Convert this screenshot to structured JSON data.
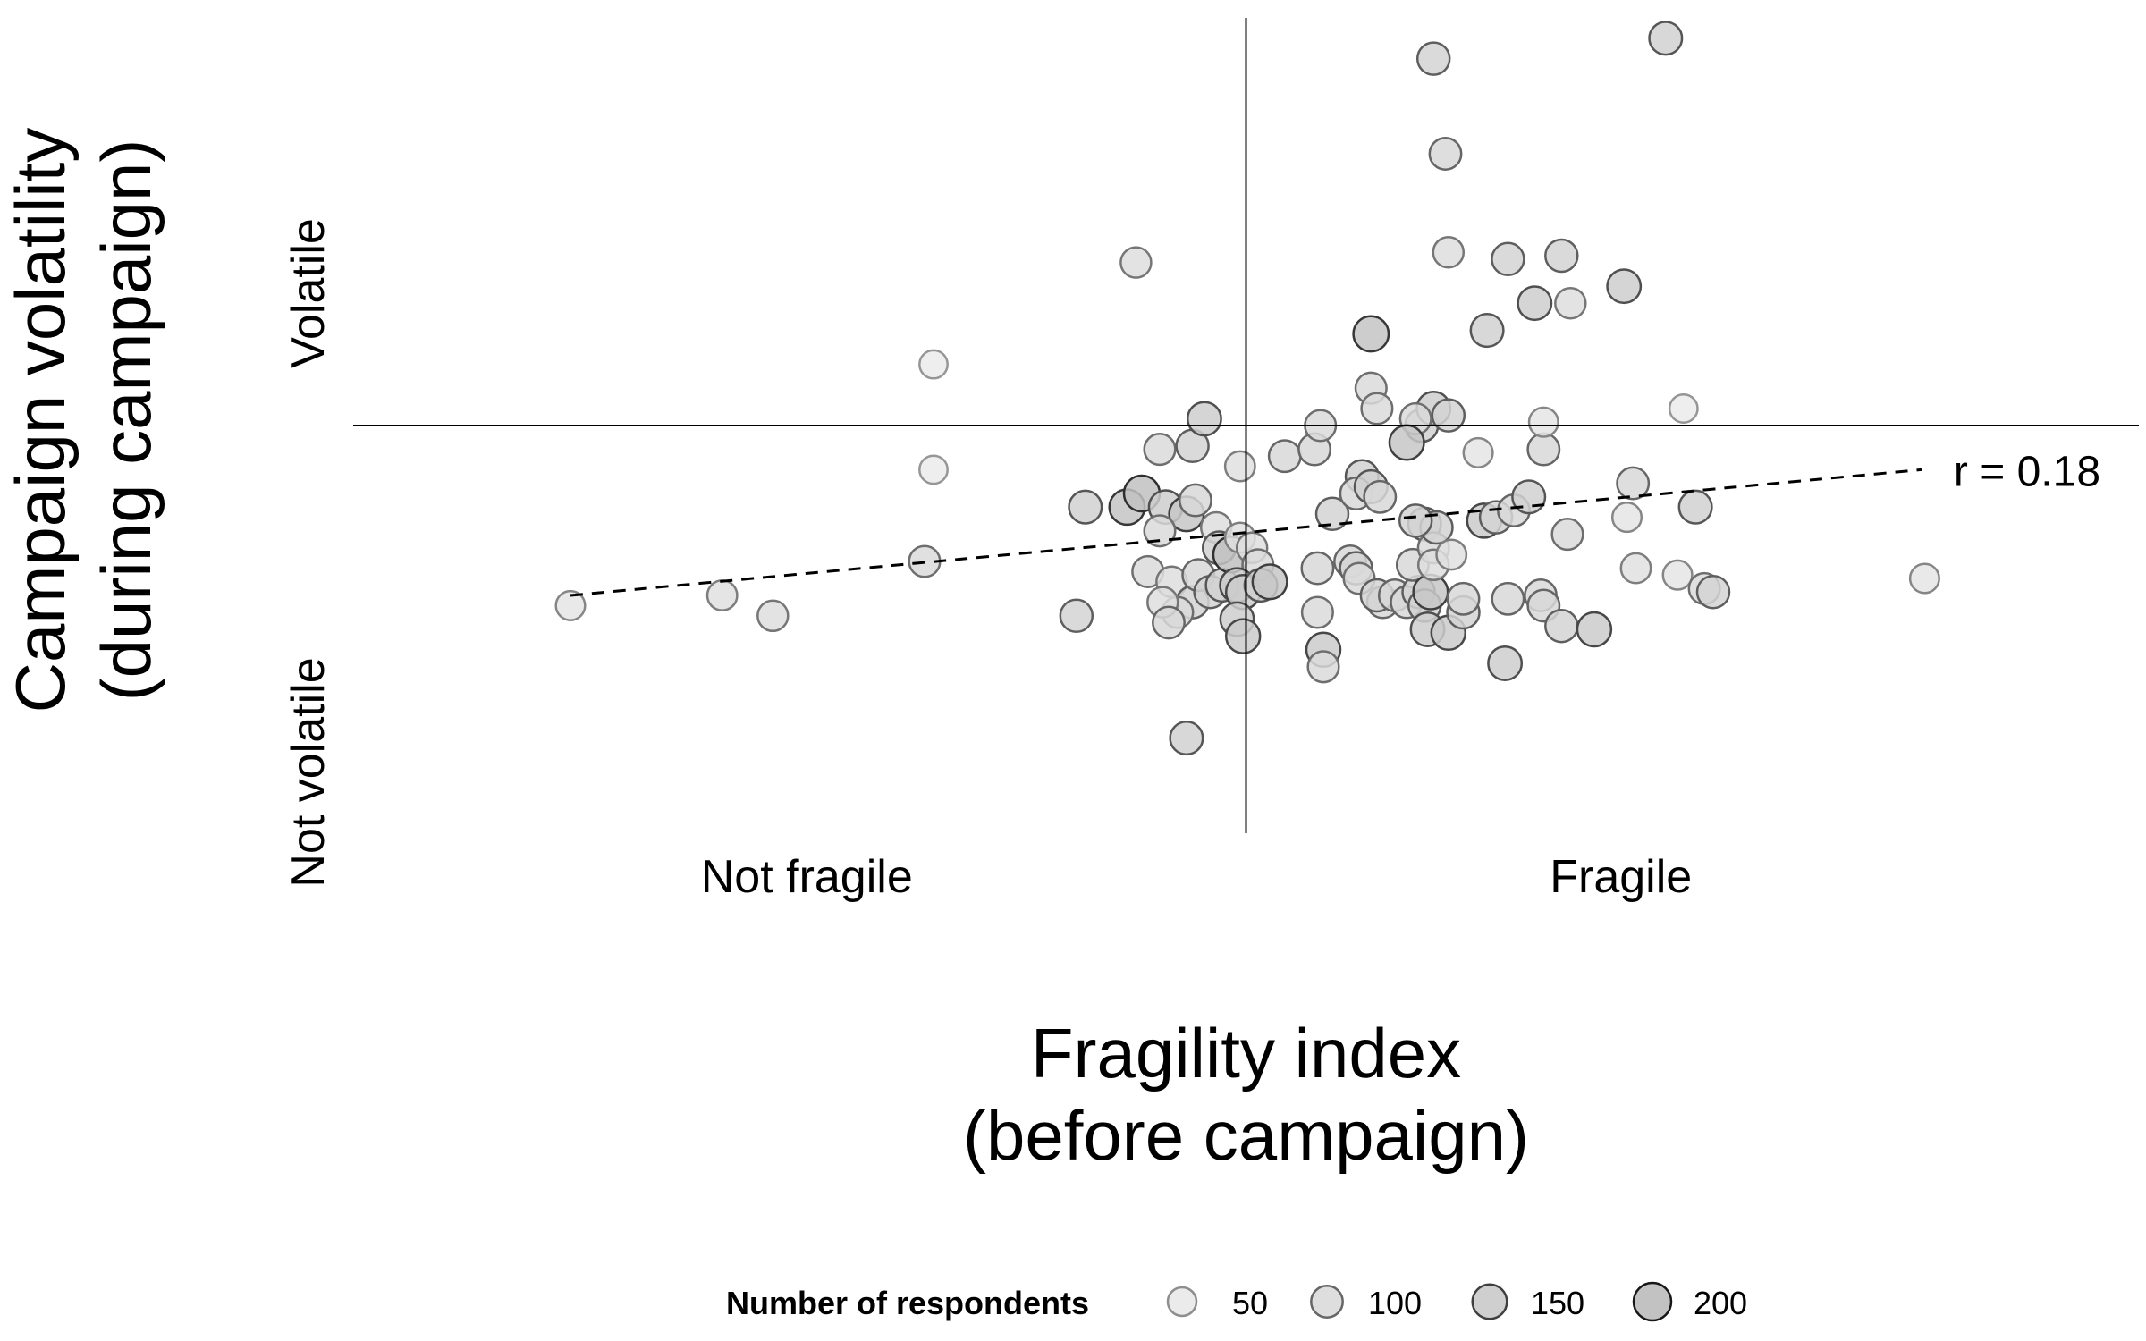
{
  "chart_data": {
    "type": "scatter",
    "xlabel_lines": [
      "Fragility index",
      "(before campaign)"
    ],
    "ylabel_lines": [
      "Campaign volatility",
      "(during campaign)"
    ],
    "x_category_labels": [
      "Not fragile",
      "Fragile"
    ],
    "y_category_labels": [
      "Volatile",
      "Not volatile"
    ],
    "xlim": [
      -3.0,
      3.0
    ],
    "ylim": [
      -1.2,
      1.2
    ],
    "reference_lines": {
      "x": 0,
      "y": 0
    },
    "trend_line": {
      "style": "dashed",
      "x": [
        -2.27,
        2.27
      ],
      "y": [
        -0.5,
        -0.13
      ]
    },
    "annotation": "r = 0.18",
    "grid": false,
    "legend": {
      "title": "Number of respondents",
      "placement": "bottom",
      "values": [
        50,
        100,
        150,
        200
      ]
    },
    "points": [
      [
        -2.27,
        -0.53,
        60
      ],
      [
        -1.76,
        -0.5,
        70
      ],
      [
        -1.59,
        -0.56,
        80
      ],
      [
        -1.08,
        -0.4,
        90
      ],
      [
        -0.57,
        -0.56,
        110
      ],
      [
        -1.05,
        0.18,
        40
      ],
      [
        -1.05,
        -0.13,
        40
      ],
      [
        -0.37,
        0.48,
        80
      ],
      [
        -0.54,
        -0.24,
        120
      ],
      [
        -0.4,
        -0.24,
        160
      ],
      [
        -0.35,
        -0.2,
        170
      ],
      [
        -0.27,
        -0.24,
        130
      ],
      [
        -0.2,
        -0.26,
        150
      ],
      [
        -0.17,
        -0.22,
        100
      ],
      [
        -0.1,
        -0.3,
        80
      ],
      [
        -0.09,
        -0.36,
        120
      ],
      [
        -0.29,
        -0.31,
        90
      ],
      [
        -0.33,
        -0.43,
        90
      ],
      [
        -0.25,
        -0.46,
        80
      ],
      [
        -0.18,
        -0.52,
        110
      ],
      [
        -0.16,
        -0.44,
        100
      ],
      [
        -0.12,
        -0.49,
        110
      ],
      [
        -0.08,
        -0.47,
        120
      ],
      [
        -0.05,
        -0.38,
        170
      ],
      [
        -0.02,
        -0.33,
        70
      ],
      [
        0.02,
        -0.36,
        80
      ],
      [
        0.04,
        -0.41,
        90
      ],
      [
        -0.03,
        -0.47,
        140
      ],
      [
        -0.01,
        -0.49,
        140
      ],
      [
        0.05,
        -0.47,
        120
      ],
      [
        0.08,
        -0.46,
        150
      ],
      [
        -0.03,
        -0.57,
        130
      ],
      [
        -0.01,
        -0.62,
        140
      ],
      [
        -0.23,
        -0.55,
        90
      ],
      [
        -0.28,
        -0.52,
        80
      ],
      [
        -0.26,
        -0.58,
        100
      ],
      [
        -0.2,
        -0.92,
        120
      ],
      [
        -0.29,
        -0.07,
        90
      ],
      [
        -0.18,
        -0.06,
        110
      ],
      [
        -0.14,
        0.02,
        130
      ],
      [
        -0.02,
        -0.12,
        70
      ],
      [
        0.13,
        -0.09,
        100
      ],
      [
        0.23,
        -0.07,
        100
      ],
      [
        0.25,
        0.0,
        90
      ],
      [
        0.29,
        -0.26,
        110
      ],
      [
        0.24,
        -0.42,
        100
      ],
      [
        0.35,
        -0.4,
        100
      ],
      [
        0.37,
        -0.42,
        110
      ],
      [
        0.24,
        -0.55,
        90
      ],
      [
        0.26,
        -0.66,
        140
      ],
      [
        0.26,
        -0.71,
        90
      ],
      [
        0.39,
        -0.15,
        120
      ],
      [
        0.37,
        -0.2,
        100
      ],
      [
        0.42,
        -0.18,
        120
      ],
      [
        0.45,
        -0.21,
        100
      ],
      [
        0.42,
        0.11,
        90
      ],
      [
        0.44,
        0.05,
        90
      ],
      [
        0.42,
        0.27,
        160
      ],
      [
        0.38,
        -0.45,
        90
      ],
      [
        0.46,
        -0.52,
        100
      ],
      [
        0.44,
        -0.5,
        110
      ],
      [
        0.5,
        -0.5,
        100
      ],
      [
        0.54,
        -0.52,
        100
      ],
      [
        0.58,
        -0.49,
        110
      ],
      [
        0.56,
        -0.41,
        100
      ],
      [
        0.6,
        -0.53,
        110
      ],
      [
        0.61,
        -0.6,
        130
      ],
      [
        0.62,
        -0.49,
        150
      ],
      [
        0.6,
        -0.29,
        120
      ],
      [
        0.63,
        -0.36,
        90
      ],
      [
        0.63,
        -0.41,
        80
      ],
      [
        0.64,
        -0.3,
        110
      ],
      [
        0.57,
        -0.28,
        110
      ],
      [
        0.68,
        -0.61,
        140
      ],
      [
        0.73,
        -0.55,
        110
      ],
      [
        0.73,
        -0.51,
        100
      ],
      [
        0.69,
        -0.38,
        70
      ],
      [
        0.8,
        -0.28,
        140
      ],
      [
        0.84,
        -0.27,
        110
      ],
      [
        0.9,
        -0.25,
        100
      ],
      [
        0.88,
        -0.51,
        100
      ],
      [
        0.87,
        -0.7,
        130
      ],
      [
        0.95,
        -0.21,
        120
      ],
      [
        0.99,
        -0.5,
        100
      ],
      [
        1.0,
        -0.53,
        100
      ],
      [
        1.06,
        -0.59,
        110
      ],
      [
        1.17,
        -0.6,
        140
      ],
      [
        1.08,
        -0.32,
        90
      ],
      [
        1.28,
        -0.27,
        60
      ],
      [
        1.3,
        -0.17,
        100
      ],
      [
        1.31,
        -0.42,
        70
      ],
      [
        1.45,
        -0.44,
        60
      ],
      [
        1.54,
        -0.48,
        90
      ],
      [
        1.51,
        -0.24,
        120
      ],
      [
        1.57,
        -0.49,
        110
      ],
      [
        2.28,
        -0.45,
        60
      ],
      [
        0.59,
        0.0,
        120
      ],
      [
        0.63,
        0.05,
        130
      ],
      [
        0.57,
        0.02,
        90
      ],
      [
        0.54,
        -0.05,
        150
      ],
      [
        0.68,
        0.03,
        110
      ],
      [
        0.78,
        -0.08,
        60
      ],
      [
        1.0,
        -0.07,
        100
      ],
      [
        1.0,
        0.01,
        60
      ],
      [
        1.47,
        0.05,
        40
      ],
      [
        0.67,
        0.8,
        100
      ],
      [
        0.68,
        0.51,
        80
      ],
      [
        0.88,
        0.49,
        110
      ],
      [
        0.81,
        0.28,
        120
      ],
      [
        0.97,
        0.36,
        130
      ],
      [
        1.09,
        0.36,
        80
      ],
      [
        1.27,
        0.41,
        130
      ],
      [
        1.06,
        0.5,
        110
      ],
      [
        0.63,
        1.08,
        110
      ],
      [
        1.41,
        1.14,
        120
      ]
    ]
  }
}
